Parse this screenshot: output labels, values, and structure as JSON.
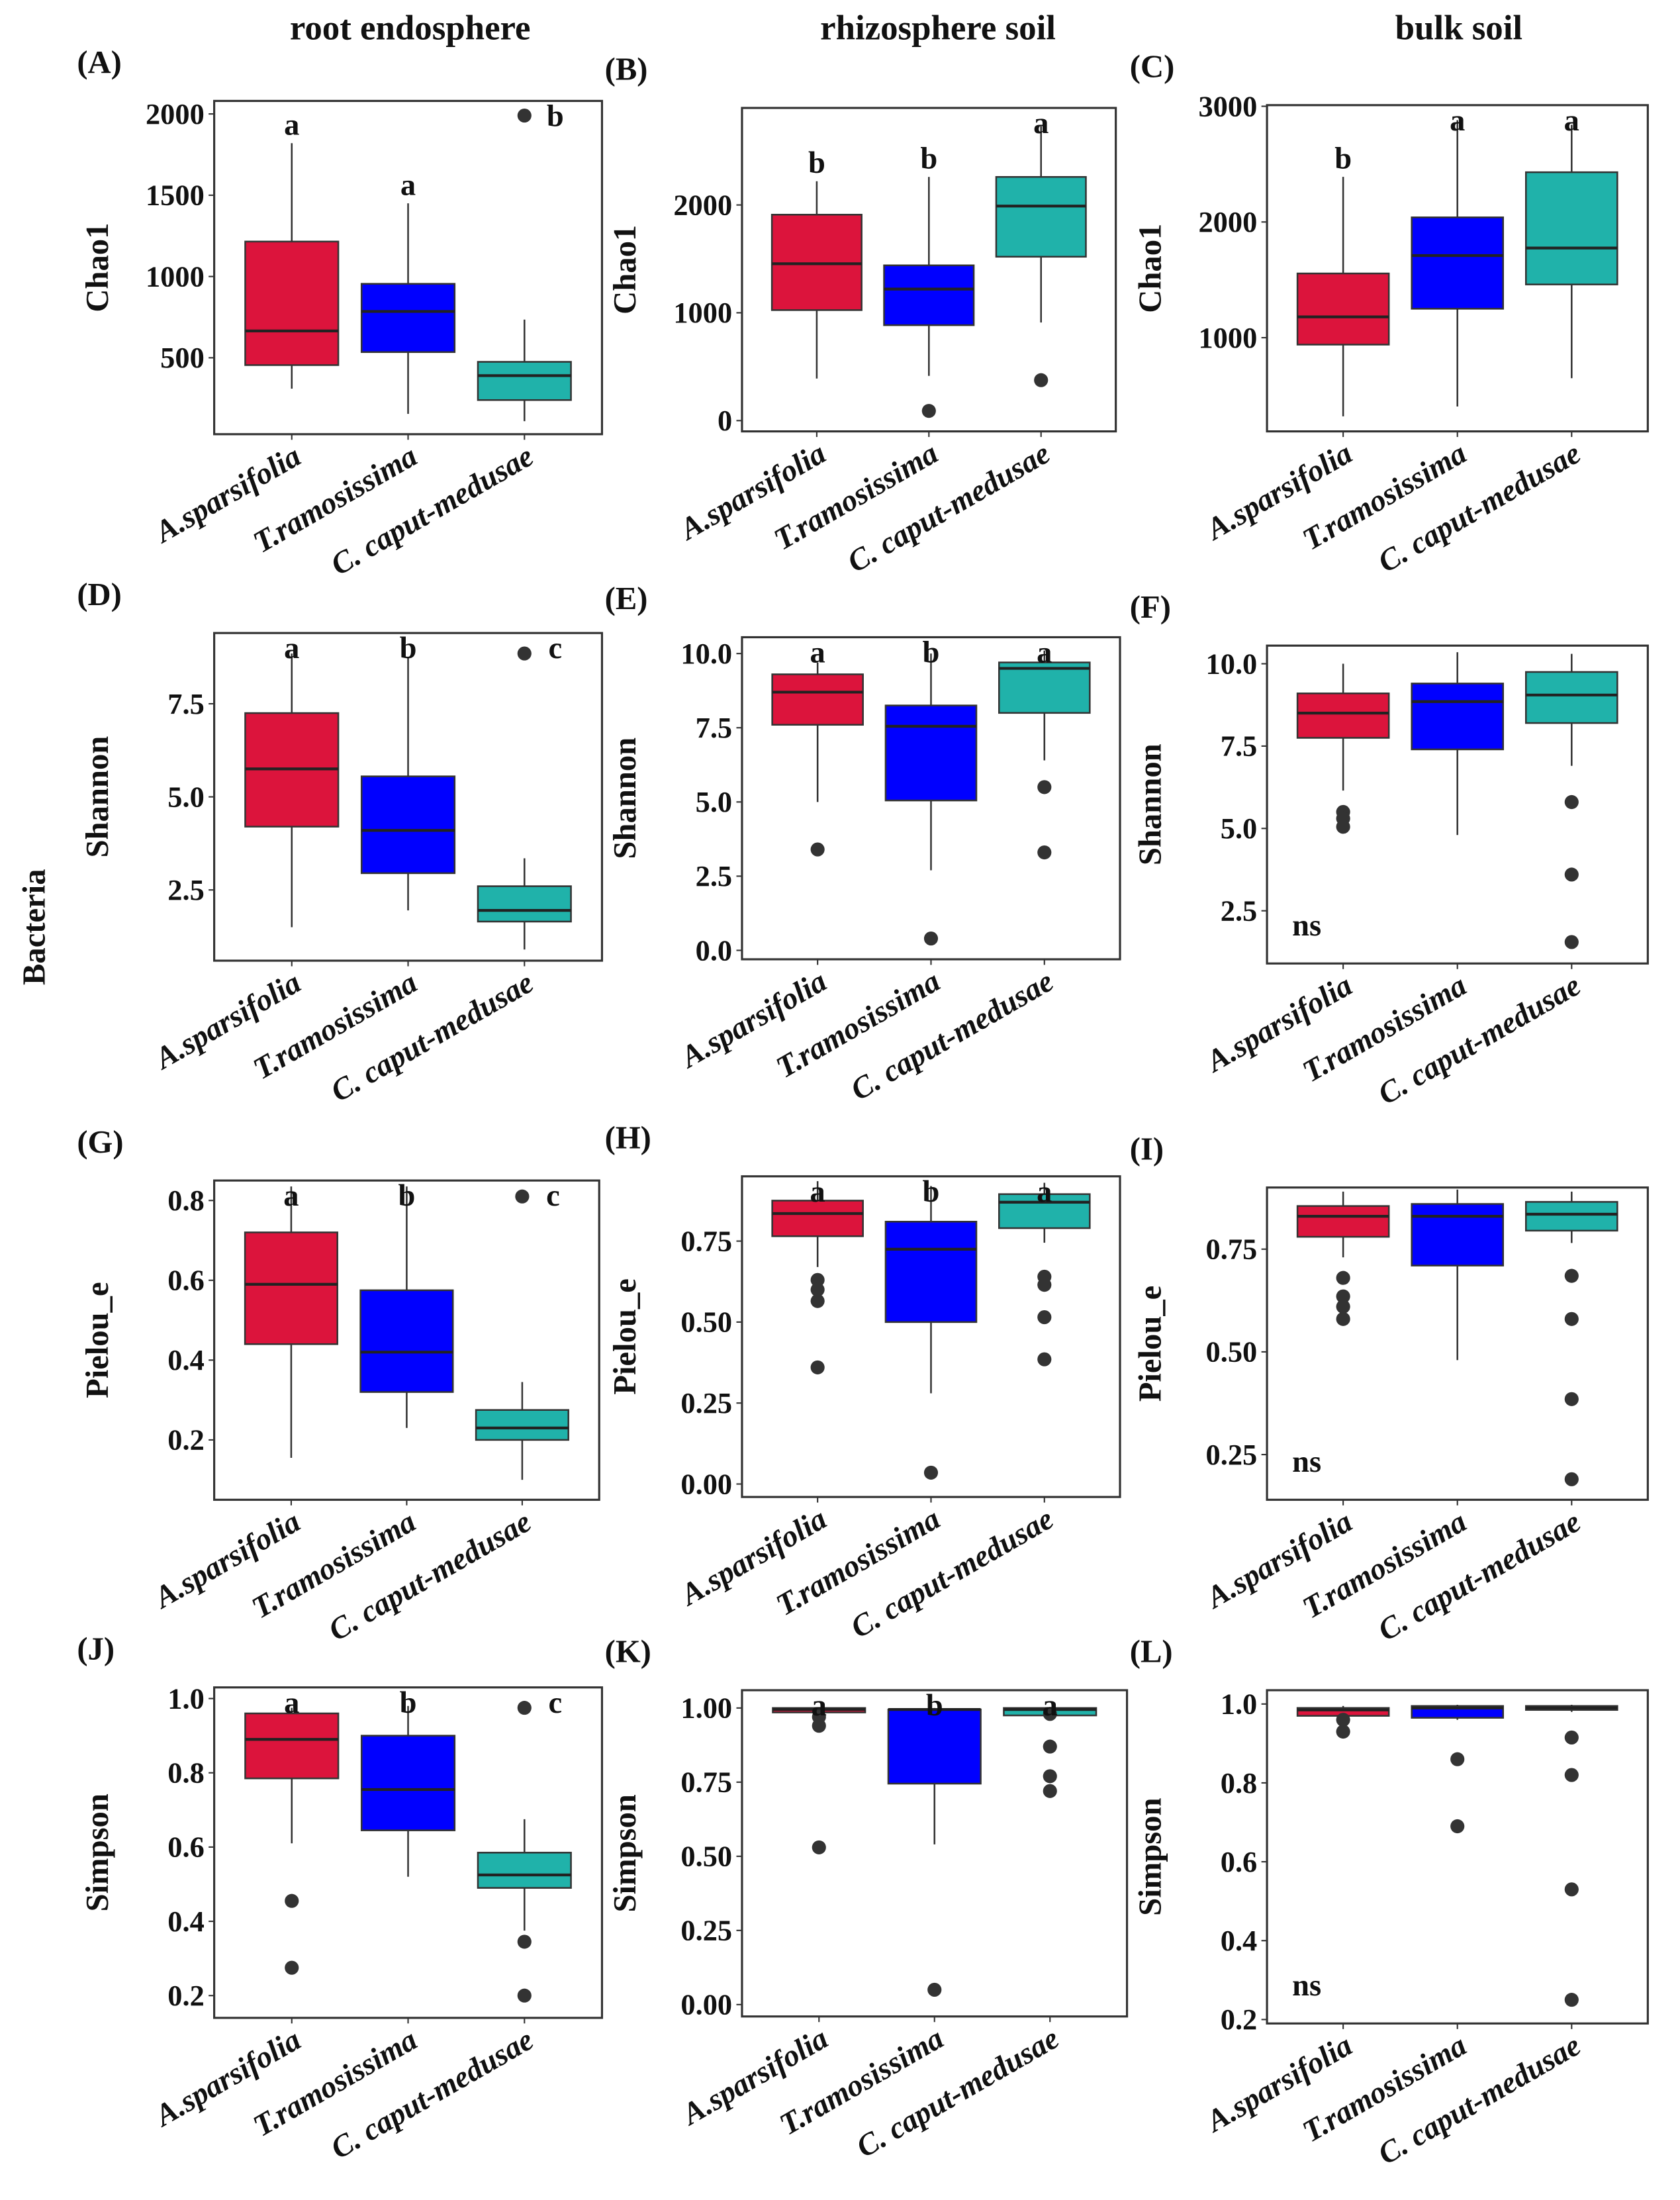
{
  "column_titles": [
    "root endosphere",
    "rhizosphere soil",
    "bulk soil"
  ],
  "row_title": "Bacteria",
  "chart_data": {
    "type": "boxplot",
    "categories": [
      "A.sparsifolia",
      "T.ramosissima",
      "C. caput-medusae"
    ],
    "colors": [
      "#DC143C",
      "#0000FF",
      "#20B2AA"
    ],
    "panels": [
      {
        "label": "(A)",
        "ylabel": "Chao1",
        "yticks": [
          500,
          1000,
          1500,
          2000
        ],
        "ylim": [
          30,
          2080
        ],
        "note": "",
        "groups": [
          {
            "stats": [
              310,
              455,
              665,
              1215,
              1820
            ],
            "outliers": [],
            "letter": "a"
          },
          {
            "stats": [
              155,
              535,
              785,
              955,
              1450
            ],
            "outliers": [],
            "letter": "a"
          },
          {
            "stats": [
              110,
              240,
              390,
              475,
              735
            ],
            "outliers": [
              1990
            ],
            "letter": "b"
          }
        ]
      },
      {
        "label": "(B)",
        "ylabel": "Chao1",
        "yticks": [
          0,
          1000,
          2000
        ],
        "ylim": [
          -100,
          2900
        ],
        "note": "",
        "groups": [
          {
            "stats": [
              390,
              1025,
              1455,
              1910,
              2220
            ],
            "outliers": [],
            "letter": "b"
          },
          {
            "stats": [
              415,
              885,
              1220,
              1440,
              2260
            ],
            "outliers": [
              90
            ],
            "letter": "b"
          },
          {
            "stats": [
              910,
              1520,
              1990,
              2260,
              2730
            ],
            "outliers": [
              375
            ],
            "letter": "a"
          }
        ]
      },
      {
        "label": "(C)",
        "ylabel": "Chao1",
        "yticks": [
          1000,
          2000,
          3000
        ],
        "ylim": [
          190,
          3010
        ],
        "note": "",
        "groups": [
          {
            "stats": [
              320,
              940,
              1180,
              1555,
              2390
            ],
            "outliers": [],
            "letter": "b"
          },
          {
            "stats": [
              405,
              1250,
              1710,
              2040,
              2880
            ],
            "outliers": [],
            "letter": "a"
          },
          {
            "stats": [
              650,
              1460,
              1775,
              2430,
              2840
            ],
            "outliers": [],
            "letter": "a"
          }
        ]
      },
      {
        "label": "(D)",
        "ylabel": "Shannon",
        "yticks": [
          2.5,
          5.0,
          7.5
        ],
        "ylim": [
          0.6,
          9.4
        ],
        "note": "",
        "groups": [
          {
            "stats": [
              1.5,
              4.2,
              5.75,
              7.25,
              8.85
            ],
            "outliers": [],
            "letter": "a"
          },
          {
            "stats": [
              1.95,
              2.95,
              4.1,
              5.55,
              8.75
            ],
            "outliers": [],
            "letter": "b"
          },
          {
            "stats": [
              0.9,
              1.65,
              1.95,
              2.6,
              3.35
            ],
            "outliers": [
              8.85
            ],
            "letter": "c"
          }
        ]
      },
      {
        "label": "(E)",
        "ylabel": "Shannon",
        "yticks": [
          0.0,
          2.5,
          5.0,
          7.5,
          10.0
        ],
        "ylim": [
          -0.3,
          10.55
        ],
        "note": "",
        "groups": [
          {
            "stats": [
              5.0,
              7.6,
              8.7,
              9.3,
              9.7
            ],
            "outliers": [
              3.4
            ],
            "letter": "a"
          },
          {
            "stats": [
              2.7,
              5.05,
              7.55,
              8.25,
              10.0
            ],
            "outliers": [
              0.4
            ],
            "letter": "b"
          },
          {
            "stats": [
              6.4,
              8.0,
              9.5,
              9.7,
              10.1
            ],
            "outliers": [
              5.5,
              3.3
            ],
            "letter": "a"
          }
        ]
      },
      {
        "label": "(F)",
        "ylabel": "Shannon",
        "yticks": [
          2.5,
          5.0,
          7.5,
          10.0
        ],
        "ylim": [
          0.9,
          10.55
        ],
        "note": "ns",
        "groups": [
          {
            "stats": [
              6.15,
              7.75,
              8.5,
              9.1,
              10.0
            ],
            "outliers": [
              5.5,
              5.3,
              5.05
            ],
            "letter": ""
          },
          {
            "stats": [
              4.8,
              7.4,
              8.85,
              9.4,
              10.35
            ],
            "outliers": [],
            "letter": ""
          },
          {
            "stats": [
              6.9,
              8.2,
              9.05,
              9.75,
              10.3
            ],
            "outliers": [
              5.8,
              3.6,
              1.55
            ],
            "letter": ""
          }
        ]
      },
      {
        "label": "(G)",
        "ylabel": "Pielou_e",
        "yticks": [
          0.2,
          0.4,
          0.6,
          0.8
        ],
        "ylim": [
          0.05,
          0.85
        ],
        "note": "",
        "groups": [
          {
            "stats": [
              0.155,
              0.44,
              0.59,
              0.72,
              0.835
            ],
            "outliers": [],
            "letter": "a"
          },
          {
            "stats": [
              0.23,
              0.32,
              0.42,
              0.575,
              0.835
            ],
            "outliers": [],
            "letter": "b"
          },
          {
            "stats": [
              0.1,
              0.2,
              0.23,
              0.275,
              0.345
            ],
            "outliers": [
              0.81
            ],
            "letter": "c"
          }
        ]
      },
      {
        "label": "(H)",
        "ylabel": "Pielou_e",
        "yticks": [
          0.0,
          0.25,
          0.5,
          0.75
        ],
        "ylim": [
          -0.04,
          0.95
        ],
        "note": "",
        "groups": [
          {
            "stats": [
              0.67,
              0.765,
              0.835,
              0.875,
              0.935
            ],
            "outliers": [
              0.63,
              0.6,
              0.565,
              0.36
            ],
            "letter": "a"
          },
          {
            "stats": [
              0.28,
              0.5,
              0.725,
              0.81,
              0.92
            ],
            "outliers": [
              0.035
            ],
            "letter": "b"
          },
          {
            "stats": [
              0.745,
              0.79,
              0.87,
              0.895,
              0.93
            ],
            "outliers": [
              0.64,
              0.615,
              0.515,
              0.385
            ],
            "letter": "a"
          }
        ]
      },
      {
        "label": "(I)",
        "ylabel": "Pielou_e",
        "yticks": [
          0.25,
          0.5,
          0.75
        ],
        "ylim": [
          0.14,
          0.9
        ],
        "note": "ns",
        "groups": [
          {
            "stats": [
              0.73,
              0.78,
              0.83,
              0.855,
              0.89
            ],
            "outliers": [
              0.68,
              0.635,
              0.61,
              0.58
            ],
            "letter": ""
          },
          {
            "stats": [
              0.48,
              0.71,
              0.83,
              0.86,
              0.895
            ],
            "outliers": [],
            "letter": ""
          },
          {
            "stats": [
              0.765,
              0.795,
              0.835,
              0.865,
              0.89
            ],
            "outliers": [
              0.685,
              0.58,
              0.385,
              0.19
            ],
            "letter": ""
          }
        ]
      },
      {
        "label": "(J)",
        "ylabel": "Simpson",
        "yticks": [
          0.2,
          0.4,
          0.6,
          0.8,
          1.0
        ],
        "ylim": [
          0.14,
          1.03
        ],
        "note": "",
        "groups": [
          {
            "stats": [
              0.61,
              0.785,
              0.89,
              0.96,
              0.975
            ],
            "outliers": [
              0.455,
              0.275
            ],
            "letter": "a"
          },
          {
            "stats": [
              0.52,
              0.645,
              0.755,
              0.9,
              0.98
            ],
            "outliers": [],
            "letter": "b"
          },
          {
            "stats": [
              0.375,
              0.49,
              0.525,
              0.585,
              0.675
            ],
            "outliers": [
              0.975,
              0.345,
              0.2
            ],
            "letter": "c"
          }
        ]
      },
      {
        "label": "(K)",
        "ylabel": "Simpson",
        "yticks": [
          0.0,
          0.25,
          0.5,
          0.75,
          1.0
        ],
        "ylim": [
          -0.04,
          1.06
        ],
        "note": "",
        "groups": [
          {
            "stats": [
              0.97,
              0.985,
              0.995,
              1.0,
              1.0
            ],
            "outliers": [
              0.97,
              0.94,
              0.53
            ],
            "letter": "a"
          },
          {
            "stats": [
              0.54,
              0.745,
              0.995,
              0.995,
              1.0
            ],
            "outliers": [
              0.05
            ],
            "letter": "b"
          },
          {
            "stats": [
              0.97,
              0.975,
              0.995,
              1.0,
              1.0
            ],
            "outliers": [
              0.98,
              0.87,
              0.77,
              0.72
            ],
            "letter": "a"
          }
        ]
      },
      {
        "label": "(L)",
        "ylabel": "Simpson",
        "yticks": [
          0.2,
          0.4,
          0.6,
          0.8,
          1.0
        ],
        "ylim": [
          0.19,
          1.035
        ],
        "note": "ns",
        "groups": [
          {
            "stats": [
              0.965,
              0.97,
              0.985,
              0.99,
              0.995
            ],
            "outliers": [
              0.96,
              0.93
            ],
            "letter": ""
          },
          {
            "stats": [
              0.96,
              0.965,
              0.99,
              0.995,
              0.998
            ],
            "outliers": [
              0.86,
              0.69
            ],
            "letter": ""
          },
          {
            "stats": [
              0.98,
              0.985,
              0.99,
              0.995,
              0.998
            ],
            "outliers": [
              0.915,
              0.82,
              0.53,
              0.25
            ],
            "letter": ""
          }
        ]
      }
    ]
  }
}
